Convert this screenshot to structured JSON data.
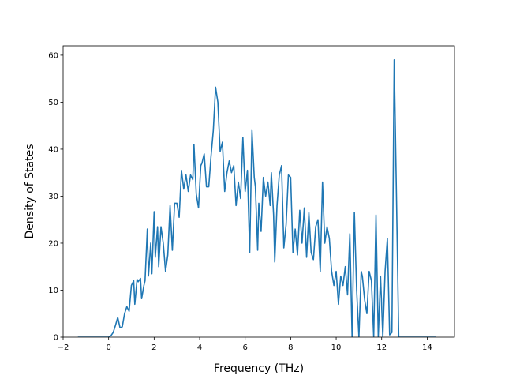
{
  "chart_data": {
    "type": "line",
    "title": "",
    "xlabel": "Frequency (THz)",
    "ylabel": "Density of States",
    "xlim": [
      -2.0,
      15.2
    ],
    "ylim": [
      0,
      62
    ],
    "xticks": [
      -2,
      0,
      2,
      4,
      6,
      8,
      10,
      12,
      14
    ],
    "yticks": [
      0,
      10,
      20,
      30,
      40,
      50,
      60
    ],
    "grid": false,
    "legend": "none",
    "colors": {
      "line": "#1f77b4",
      "axes": "#000000",
      "background": "#ffffff"
    },
    "series": [
      {
        "x": [
          -1.35,
          -1.2,
          -1.0,
          -0.8,
          -0.6,
          -0.4,
          -0.2,
          0.0,
          0.1,
          0.2,
          0.3,
          0.4,
          0.5,
          0.6,
          0.7,
          0.8,
          0.9,
          1.0,
          1.1,
          1.15,
          1.25,
          1.3,
          1.4,
          1.45,
          1.55,
          1.6,
          1.7,
          1.75,
          1.85,
          1.9,
          2.0,
          2.05,
          2.15,
          2.2,
          2.3,
          2.4,
          2.5,
          2.6,
          2.7,
          2.8,
          2.9,
          3.0,
          3.1,
          3.2,
          3.3,
          3.4,
          3.5,
          3.6,
          3.7,
          3.75,
          3.85,
          3.95,
          4.05,
          4.1,
          4.2,
          4.3,
          4.4,
          4.5,
          4.6,
          4.7,
          4.8,
          4.9,
          5.0,
          5.1,
          5.2,
          5.3,
          5.4,
          5.5,
          5.6,
          5.7,
          5.8,
          5.9,
          6.0,
          6.1,
          6.2,
          6.3,
          6.4,
          6.45,
          6.55,
          6.6,
          6.7,
          6.8,
          6.9,
          7.0,
          7.1,
          7.15,
          7.25,
          7.3,
          7.4,
          7.5,
          7.6,
          7.7,
          7.8,
          7.9,
          8.0,
          8.1,
          8.2,
          8.3,
          8.4,
          8.5,
          8.6,
          8.7,
          8.8,
          8.9,
          9.0,
          9.1,
          9.2,
          9.3,
          9.4,
          9.5,
          9.6,
          9.7,
          9.8,
          9.9,
          10.0,
          10.1,
          10.2,
          10.3,
          10.4,
          10.5,
          10.6,
          10.7,
          10.8,
          10.9,
          11.0,
          11.1,
          11.15,
          11.25,
          11.35,
          11.45,
          11.55,
          11.65,
          11.75,
          11.85,
          11.95,
          12.05,
          12.15,
          12.25,
          12.35,
          12.45,
          12.55,
          12.65,
          12.75,
          12.85,
          12.95,
          13.05,
          13.2,
          13.5,
          14.0,
          14.4
        ],
        "y": [
          0,
          0,
          0,
          0,
          0,
          0,
          0,
          0,
          0.3,
          1.0,
          2.5,
          4.2,
          2.0,
          2.2,
          5.0,
          6.5,
          5.5,
          11.0,
          12.0,
          7.0,
          12.3,
          11.8,
          12.5,
          8.2,
          11.0,
          12.0,
          23.0,
          13.0,
          20.0,
          13.5,
          26.7,
          17.0,
          23.5,
          15.0,
          23.5,
          20.0,
          14.0,
          17.5,
          28.0,
          18.5,
          28.5,
          28.5,
          25.5,
          35.5,
          31.5,
          34.5,
          31.0,
          34.5,
          33.5,
          41.0,
          30.5,
          27.5,
          36.5,
          37.0,
          39.0,
          32.0,
          32.0,
          38.5,
          44.0,
          53.2,
          50.0,
          39.5,
          41.5,
          31.0,
          35.0,
          37.5,
          35.0,
          36.5,
          28.0,
          33.0,
          29.5,
          42.5,
          31.0,
          35.5,
          18.0,
          44.0,
          34.0,
          32.0,
          18.5,
          28.5,
          22.5,
          34.0,
          30.0,
          33.0,
          28.0,
          35.0,
          26.0,
          16.0,
          28.0,
          34.5,
          36.5,
          19.0,
          24.0,
          34.5,
          34.0,
          18.0,
          23.0,
          17.5,
          27.0,
          20.0,
          27.5,
          17.0,
          26.5,
          18.0,
          16.5,
          23.5,
          25.0,
          14.0,
          33.0,
          20.0,
          23.5,
          21.0,
          14.0,
          11.0,
          14.0,
          7.0,
          13.0,
          11.0,
          15.0,
          9.0,
          22.0,
          0.0,
          26.5,
          10.0,
          0.0,
          14.0,
          13.0,
          8.0,
          5.0,
          14.0,
          12.0,
          0.0,
          26.0,
          0.0,
          13.0,
          0.0,
          14.0,
          21.0,
          0.5,
          1.0,
          59.0,
          30.0,
          0.0,
          0.0,
          0.0,
          0.0,
          0.0,
          0.0,
          0.0,
          0.0
        ]
      }
    ]
  }
}
